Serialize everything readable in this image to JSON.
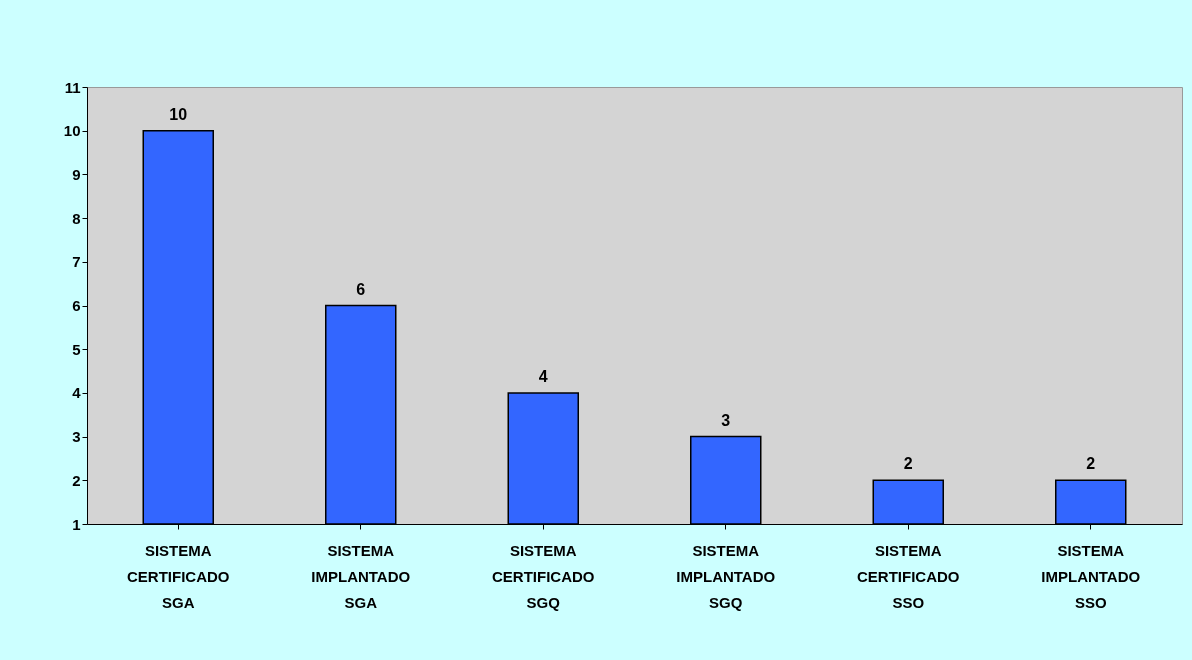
{
  "chart_data": {
    "type": "bar",
    "categories": [
      "SISTEMA CERTIFICADO SGA",
      "SISTEMA IMPLANTADO SGA",
      "SISTEMA CERTIFICADO SGQ",
      "SISTEMA IMPLANTADO SGQ",
      "SISTEMA CERTIFICADO SSO",
      "SISTEMA IMPLANTADO SSO"
    ],
    "values": [
      10,
      6,
      4,
      3,
      2,
      2
    ],
    "color": "#3366ff",
    "ylim": [
      1,
      11
    ],
    "yticks": [
      1,
      2,
      3,
      4,
      5,
      6,
      7,
      8,
      9,
      10,
      11
    ],
    "data_labels": true,
    "grid": false
  }
}
